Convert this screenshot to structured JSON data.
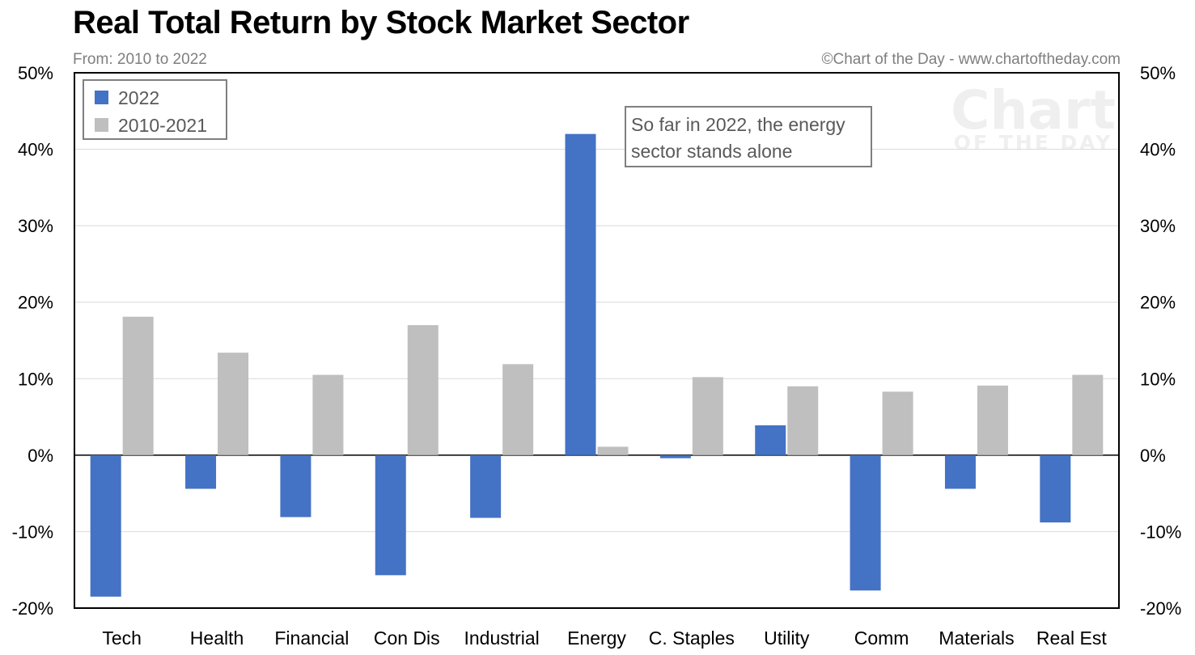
{
  "header": {
    "title": "Real Total Return by Stock Market Sector",
    "subtitle": "From: 2010 to 2022",
    "credit": "©Chart of the Day - www.chartoftheday.com"
  },
  "watermark": {
    "line1": "Chart",
    "line2": "OF THE DAY"
  },
  "chart_data": {
    "type": "bar",
    "title": "Real Total Return by Stock Market Sector",
    "subtitle": "From: 2010 to 2022",
    "xlabel": "",
    "ylabel": "",
    "ylim": [
      -20,
      50
    ],
    "yticks": [
      -20,
      -10,
      0,
      10,
      20,
      30,
      40,
      50
    ],
    "tick_format": "percent",
    "grid": true,
    "dual_y_axis": true,
    "legend_position": "top-left",
    "categories": [
      "Tech",
      "Health",
      "Financial",
      "Con Dis",
      "Industrial",
      "Energy",
      "C. Staples",
      "Utility",
      "Comm",
      "Materials",
      "Real Est"
    ],
    "series": [
      {
        "name": "2022",
        "color": "#4472c4",
        "values": [
          -18.5,
          -4.4,
          -8.1,
          -15.7,
          -8.2,
          42.0,
          -0.4,
          3.9,
          -17.7,
          -4.4,
          -8.8
        ]
      },
      {
        "name": "2010-2021",
        "color": "#bfbfbf",
        "values": [
          18.1,
          13.4,
          10.5,
          17.0,
          11.9,
          1.1,
          10.2,
          9.0,
          8.3,
          9.1,
          10.5
        ]
      }
    ],
    "annotations": [
      {
        "text_lines": [
          "So far in 2022, the energy",
          "sector stands alone"
        ]
      }
    ]
  }
}
